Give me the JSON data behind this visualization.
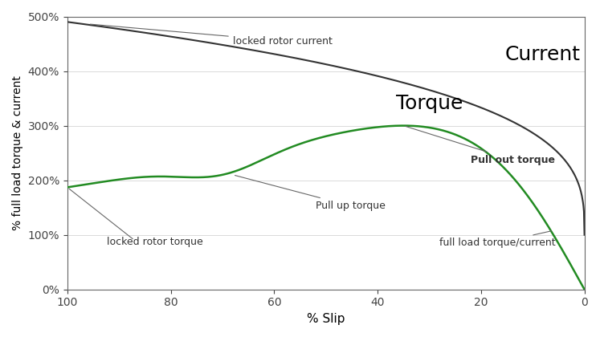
{
  "title": "",
  "xlabel": "% Slip",
  "ylabel": "% full load torque & current",
  "xlim": [
    0,
    100
  ],
  "ylim": [
    0,
    500
  ],
  "xticks": [
    0,
    20,
    40,
    60,
    80,
    100
  ],
  "yticks": [
    0,
    100,
    200,
    300,
    400,
    500
  ],
  "background_color": "#ffffff",
  "current_color": "#333333",
  "torque_color": "#228B22",
  "annotation_color": "#444444",
  "current_label": "Current",
  "torque_label": "Torque",
  "locked_rotor_current_label": "locked rotor current",
  "locked_rotor_torque_label": "locked rotor torque",
  "pull_up_torque_label": "Pull up torque",
  "pull_out_torque_label": "Pull out torque",
  "full_load_label": "full load torque/current"
}
